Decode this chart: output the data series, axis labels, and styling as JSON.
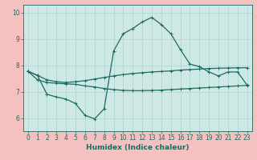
{
  "xlabel": "Humidex (Indice chaleur)",
  "bg_color": "#cde8e5",
  "plot_bg_color": "#cde8e5",
  "border_color": "#f5c0c0",
  "line_color": "#1e6b5e",
  "grid_color": "#aed4d0",
  "xlim": [
    -0.5,
    23.5
  ],
  "ylim": [
    5.5,
    10.3
  ],
  "xticks": [
    0,
    1,
    2,
    3,
    4,
    5,
    6,
    7,
    8,
    9,
    10,
    11,
    12,
    13,
    14,
    15,
    16,
    17,
    18,
    19,
    20,
    21,
    22,
    23
  ],
  "yticks": [
    6,
    7,
    8,
    9,
    10
  ],
  "line1_x": [
    0,
    1,
    2,
    3,
    4,
    5,
    6,
    7,
    8,
    9,
    10,
    11,
    12,
    13,
    14,
    15,
    16,
    17,
    18,
    19,
    20,
    21,
    22,
    23
  ],
  "line1_y": [
    7.78,
    7.62,
    7.45,
    7.38,
    7.35,
    7.38,
    7.42,
    7.48,
    7.54,
    7.6,
    7.65,
    7.69,
    7.72,
    7.75,
    7.77,
    7.79,
    7.82,
    7.84,
    7.86,
    7.88,
    7.89,
    7.9,
    7.91,
    7.91
  ],
  "line2_x": [
    0,
    1,
    2,
    3,
    4,
    5,
    6,
    7,
    8,
    9,
    10,
    11,
    12,
    13,
    14,
    15,
    16,
    17,
    18,
    19,
    20,
    21,
    22,
    23
  ],
  "line2_y": [
    7.78,
    7.62,
    6.9,
    6.8,
    6.72,
    6.55,
    6.1,
    5.97,
    6.35,
    8.55,
    9.2,
    9.4,
    9.65,
    9.82,
    9.55,
    9.2,
    8.6,
    8.05,
    7.95,
    7.75,
    7.6,
    7.75,
    7.75,
    7.25
  ],
  "line3_x": [
    0,
    1,
    2,
    3,
    4,
    5,
    6,
    7,
    8,
    9,
    10,
    11,
    12,
    13,
    14,
    15,
    16,
    17,
    18,
    19,
    20,
    21,
    22,
    23
  ],
  "line3_y": [
    7.78,
    7.45,
    7.35,
    7.32,
    7.3,
    7.28,
    7.22,
    7.18,
    7.12,
    7.08,
    7.05,
    7.04,
    7.04,
    7.05,
    7.06,
    7.08,
    7.1,
    7.12,
    7.14,
    7.16,
    7.18,
    7.2,
    7.22,
    7.24
  ],
  "marker": "+",
  "marker_size": 3,
  "line_width": 0.9,
  "tick_fontsize": 5.5,
  "label_fontsize": 6.5
}
